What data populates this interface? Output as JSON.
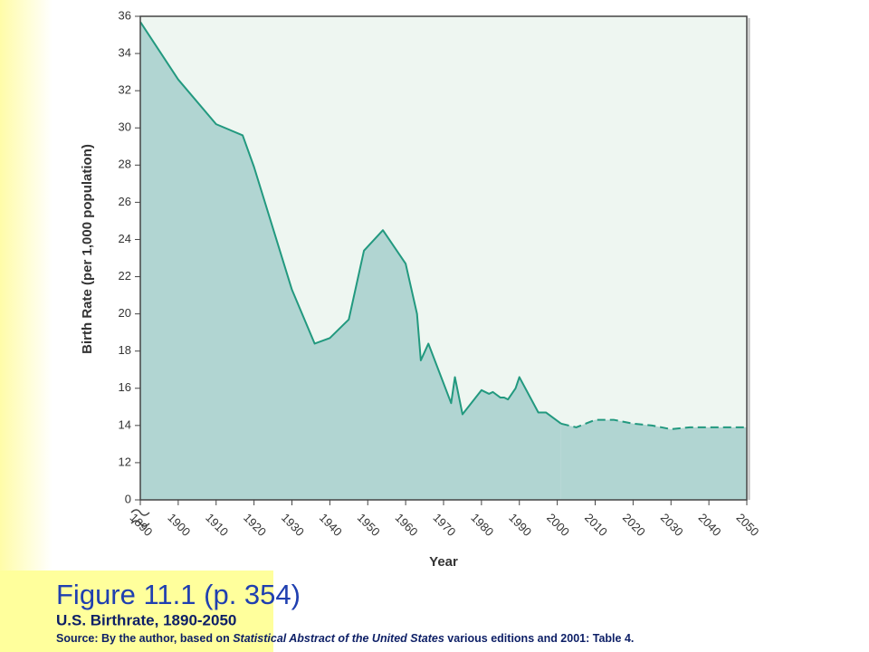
{
  "chart_data": {
    "type": "line",
    "figure_label": "Figure 11.1  (p. 354)",
    "title": "U.S. Birthrate, 1890-2050",
    "source": [
      "Source: By the author, based on ",
      "Statistical Abstract of the United States",
      " various editions and 2001: Table 4."
    ],
    "x_label": "Year",
    "y_label": "Birth Rate (per 1,000 population)",
    "x": [
      1890,
      1900,
      1910,
      1917,
      1920,
      1930,
      1936,
      1940,
      1945,
      1949,
      1954,
      1960,
      1963,
      1964,
      1966,
      1972,
      1973,
      1975,
      1980,
      1982,
      1983,
      1985,
      1986,
      1987,
      1989,
      1990,
      1995,
      1997,
      2001,
      2005,
      2010,
      2015,
      2020,
      2025,
      2030,
      2035,
      2040,
      2045,
      2050
    ],
    "series": [
      {
        "style": "solid",
        "color": "#22997f",
        "values": [
          35.7,
          32.6,
          30.2,
          29.6,
          27.9,
          21.3,
          18.4,
          18.7,
          19.7,
          23.4,
          24.5,
          22.7,
          20.0,
          17.5,
          18.4,
          15.2,
          16.6,
          14.6,
          15.9,
          15.7,
          15.8,
          15.5,
          15.5,
          15.4,
          16.0,
          16.6,
          14.7,
          14.7,
          14.1,
          null,
          null,
          null,
          null,
          null,
          null,
          null,
          null,
          null,
          null
        ]
      },
      {
        "style": "dashed",
        "color": "#22997f",
        "values": [
          null,
          null,
          null,
          null,
          null,
          null,
          null,
          null,
          null,
          null,
          null,
          null,
          null,
          null,
          null,
          null,
          null,
          null,
          null,
          null,
          null,
          null,
          null,
          null,
          null,
          null,
          null,
          null,
          14.1,
          13.9,
          14.3,
          14.3,
          14.1,
          14.0,
          13.8,
          13.9,
          13.9,
          13.9,
          13.9
        ]
      }
    ],
    "area_color": "#b1d5d2",
    "plot_background": "#eef6f1",
    "xlim": [
      1890,
      2050
    ],
    "xticks": [
      1890,
      1900,
      1910,
      1920,
      1930,
      1940,
      1950,
      1960,
      1970,
      1980,
      1990,
      2000,
      2010,
      2020,
      2030,
      2040,
      2050
    ],
    "ylim": [
      0,
      36
    ],
    "y_break": [
      0,
      10
    ],
    "yticks": [
      0,
      12,
      14,
      16,
      18,
      20,
      22,
      24,
      26,
      28,
      30,
      32,
      34,
      36
    ]
  }
}
